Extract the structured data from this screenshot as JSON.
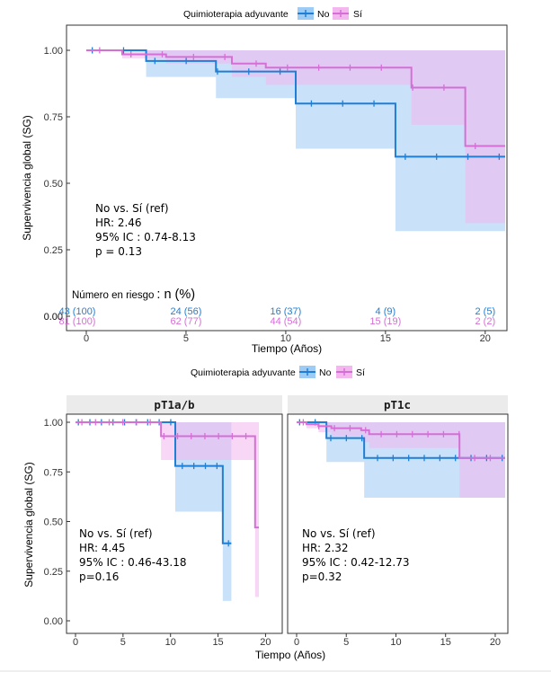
{
  "colors": {
    "no": "#1f7fd6",
    "si": "#d56fd5",
    "no_fill": "#9ccbf5",
    "si_fill": "#f3b6ee",
    "overlap_fill": "#c6aee9",
    "strip": "#ebebeb"
  },
  "legend": {
    "title": "Quimioterapia adyuvante",
    "no": "No",
    "si": "Sí"
  },
  "ylabel": "Supervivencia global (SG)",
  "xlabel": "Tiempo (Años)",
  "chart_data": [
    {
      "type": "line",
      "subtype": "kaplan-meier",
      "xlabel": "Tiempo (Años)",
      "ylabel": "Supervivencia global (SG)",
      "xlim": [
        0,
        21
      ],
      "ylim": [
        0,
        1.0
      ],
      "xticks": [
        "0",
        "5",
        "10",
        "15",
        "20"
      ],
      "yticks": [
        "0.00",
        "0.25",
        "0.50",
        "0.75",
        "1.00"
      ],
      "annotation": [
        "No vs. Sí  (ref)",
        "HR: 2.46",
        "95% IC : 0.74-8.13",
        "p = 0.13"
      ],
      "series": [
        {
          "name": "No",
          "steps": [
            [
              0,
              1.0
            ],
            [
              3,
              0.96
            ],
            [
              6.5,
              0.92
            ],
            [
              10.5,
              0.8
            ],
            [
              15.5,
              0.6
            ],
            [
              21,
              0.6
            ]
          ],
          "ci_low": [
            [
              0,
              1.0
            ],
            [
              3,
              0.9
            ],
            [
              6.5,
              0.82
            ],
            [
              10.5,
              0.63
            ],
            [
              15.5,
              0.32
            ],
            [
              21,
              0.32
            ]
          ],
          "ci_high": [
            [
              0,
              1.0
            ],
            [
              21,
              1.0
            ]
          ]
        },
        {
          "name": "Sí",
          "steps": [
            [
              0,
              1.0
            ],
            [
              1.8,
              0.985
            ],
            [
              4,
              0.975
            ],
            [
              7.3,
              0.95
            ],
            [
              9,
              0.935
            ],
            [
              16.3,
              0.86
            ],
            [
              19,
              0.64
            ],
            [
              21,
              0.64
            ]
          ],
          "ci_low": [
            [
              0,
              1.0
            ],
            [
              1.8,
              0.97
            ],
            [
              4,
              0.95
            ],
            [
              7.3,
              0.9
            ],
            [
              9,
              0.87
            ],
            [
              16.3,
              0.72
            ],
            [
              19,
              0.35
            ],
            [
              21,
              0.35
            ]
          ],
          "ci_high": [
            [
              0,
              1.0
            ],
            [
              21,
              1.0
            ]
          ]
        }
      ],
      "risk_table": {
        "title_small": "Número en riesgo",
        "title_large": ": n (%)",
        "no": [
          "43 (100)",
          "24 (56)",
          "16 (37)",
          "4 (9)",
          "2 (5)"
        ],
        "si": [
          "81 (100)",
          "62 (77)",
          "44 (54)",
          "15 (19)",
          "2 (2)"
        ]
      }
    },
    {
      "type": "line",
      "subtype": "kaplan-meier",
      "panel": "pT1a/b",
      "xlim": [
        0,
        21
      ],
      "ylim": [
        0,
        1.0
      ],
      "xticks": [
        "0",
        "5",
        "10",
        "15",
        "20"
      ],
      "yticks": [
        "0.00",
        "0.25",
        "0.50",
        "0.75",
        "1.00"
      ],
      "annotation": [
        "No vs. Sí  (ref)",
        "HR: 4.45",
        "95% IC : 0.46-43.18",
        "p=0.16"
      ],
      "series": [
        {
          "name": "No",
          "steps": [
            [
              0,
              1.0
            ],
            [
              10.5,
              0.78
            ],
            [
              15.5,
              0.39
            ],
            [
              16.4,
              0.39
            ]
          ],
          "ci_low": [
            [
              0,
              1.0
            ],
            [
              10.5,
              0.55
            ],
            [
              15.5,
              0.1
            ],
            [
              16.4,
              0.1
            ]
          ],
          "ci_high": [
            [
              0,
              1.0
            ],
            [
              16.4,
              1.0
            ]
          ]
        },
        {
          "name": "Sí",
          "steps": [
            [
              0,
              1.0
            ],
            [
              9,
              0.93
            ],
            [
              18.9,
              0.47
            ],
            [
              19.3,
              0.47
            ]
          ],
          "ci_low": [
            [
              0,
              1.0
            ],
            [
              9,
              0.81
            ],
            [
              18.9,
              0.12
            ],
            [
              19.3,
              0.12
            ]
          ],
          "ci_high": [
            [
              0,
              1.0
            ],
            [
              19.3,
              1.0
            ]
          ]
        }
      ]
    },
    {
      "type": "line",
      "subtype": "kaplan-meier",
      "panel": "pT1c",
      "xlim": [
        0,
        21
      ],
      "ylim": [
        0,
        1.0
      ],
      "xticks": [
        "0",
        "5",
        "10",
        "15",
        "20"
      ],
      "annotation": [
        "No vs. Sí  (ref)",
        "HR: 2.32",
        "95% IC : 0.42-12.73",
        "p=0.32"
      ],
      "series": [
        {
          "name": "No",
          "steps": [
            [
              0,
              1.0
            ],
            [
              3,
              0.92
            ],
            [
              6.8,
              0.82
            ],
            [
              21,
              0.82
            ]
          ],
          "ci_low": [
            [
              0,
              1.0
            ],
            [
              3,
              0.8
            ],
            [
              6.8,
              0.62
            ],
            [
              21,
              0.62
            ]
          ],
          "ci_high": [
            [
              0,
              1.0
            ],
            [
              21,
              1.0
            ]
          ]
        },
        {
          "name": "Sí",
          "steps": [
            [
              0,
              1.0
            ],
            [
              1,
              0.99
            ],
            [
              2.2,
              0.98
            ],
            [
              3.5,
              0.97
            ],
            [
              6.5,
              0.96
            ],
            [
              7.3,
              0.94
            ],
            [
              16.4,
              0.82
            ],
            [
              21,
              0.82
            ]
          ],
          "ci_low": [
            [
              0,
              1.0
            ],
            [
              1,
              0.97
            ],
            [
              2.2,
              0.95
            ],
            [
              3.5,
              0.93
            ],
            [
              6.5,
              0.9
            ],
            [
              7.3,
              0.87
            ],
            [
              16.4,
              0.62
            ],
            [
              21,
              0.62
            ]
          ],
          "ci_high": [
            [
              0,
              1.0
            ],
            [
              21,
              1.0
            ]
          ]
        }
      ]
    }
  ]
}
